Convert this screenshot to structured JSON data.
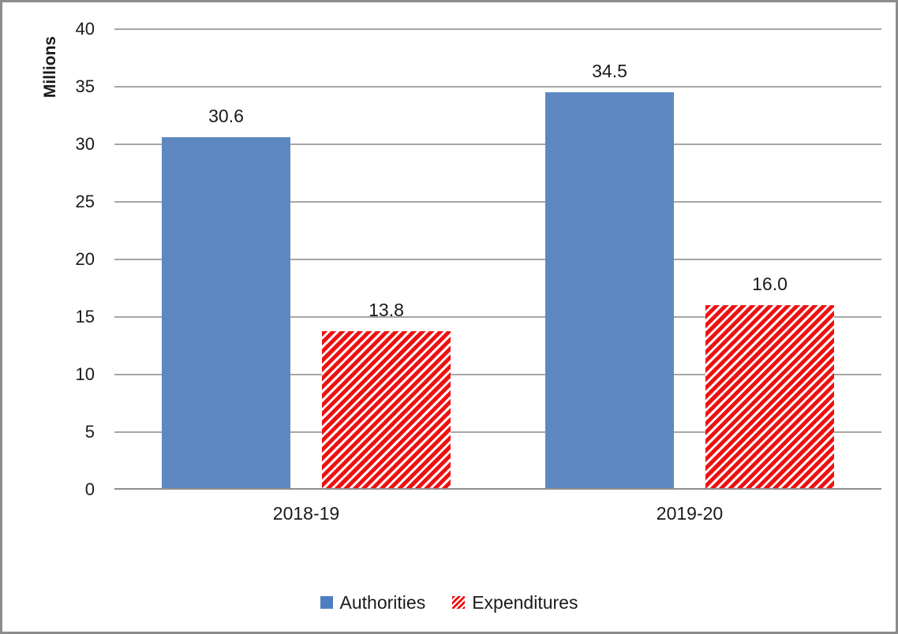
{
  "chart_data": {
    "type": "bar",
    "title": "",
    "ylabel": "Millions",
    "xlabel": "",
    "categories": [
      "2018-19",
      "2019-20"
    ],
    "series": [
      {
        "name": "Authorities",
        "values": [
          30.6,
          34.5
        ],
        "labels": [
          "30.6",
          "34.5"
        ],
        "color": "#4d7ec0",
        "fill": "solid"
      },
      {
        "name": "Expenditures",
        "values": [
          13.8,
          16.0
        ],
        "labels": [
          "13.8",
          "16.0"
        ],
        "color": "#ee1111",
        "fill": "diagonal-hatch"
      }
    ],
    "ylim": [
      0,
      40
    ],
    "ytick_step": 5,
    "yticks": [
      "0",
      "5",
      "10",
      "15",
      "20",
      "25",
      "30",
      "35",
      "40"
    ],
    "grid": true,
    "legend_position": "bottom",
    "data_labels": true,
    "colors": {
      "gridline": "#a6a6a6",
      "axis_line": "#8f8f8f",
      "frame_border": "#8c8c8c",
      "text": "#1a1a1a",
      "hatch_background": "#ffffff"
    }
  }
}
